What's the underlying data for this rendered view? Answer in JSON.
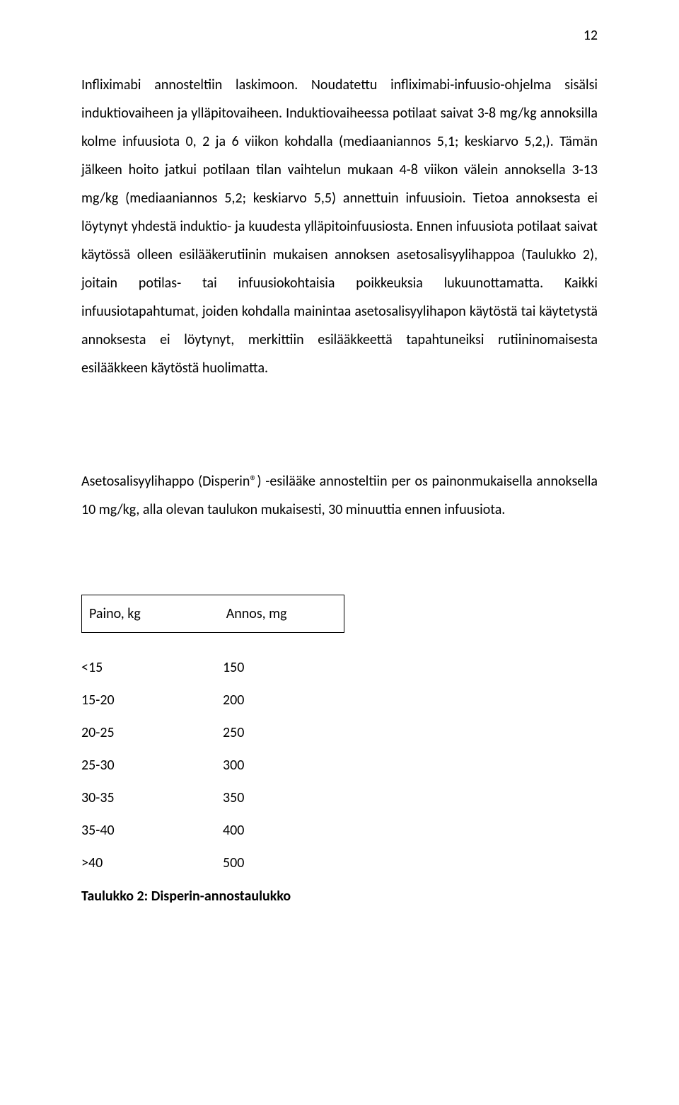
{
  "page_number": "12",
  "paragraph1": "Infliximabi annosteltiin laskimoon. Noudatettu infliximabi-infuusio-ohjelma sisälsi induktiovaiheen ja ylläpitovaiheen. Induktiovaiheessa potilaat saivat 3-8 mg/kg annoksilla kolme infuusiota 0, 2 ja 6 viikon kohdalla (mediaaniannos 5,1; keskiarvo 5,2,). Tämän jälkeen hoito jatkui potilaan tilan vaihtelun mukaan 4-8 viikon välein annoksella 3-13 mg/kg (mediaaniannos 5,2; keskiarvo 5,5) annettuin infuusioin. Tietoa annoksesta ei löytynyt yhdestä induktio- ja kuudesta ylläpitoinfuusiosta. Ennen infuusiota potilaat saivat käytössä olleen esilääkerutiinin mukaisen annoksen asetosalisyylihappoa (Taulukko 2), joitain potilas- tai infuusiokohtaisia poikkeuksia lukuunottamatta. Kaikki infuusiotapahtumat, joiden kohdalla mainintaa asetosalisyylihapon käytöstä tai käytetystä annoksesta ei löytynyt, merkittiin esilääkkeettä tapahtuneiksi rutiininomaisesta esilääkkeen käytöstä huolimatta.",
  "paragraph2": "Asetosalisyylihappo (Disperin®) -esilääke annosteltiin per os painonmukaisella annoksella 10 mg/kg, alla olevan taulukon mukaisesti, 30 minuuttia ennen infuusiota.",
  "table": {
    "header_left": "Paino, kg",
    "header_right": "Annos, mg",
    "rows": [
      {
        "left": "<15",
        "right": "150"
      },
      {
        "left": "15-20",
        "right": "200"
      },
      {
        "left": "20-25",
        "right": "250"
      },
      {
        "left": "25-30",
        "right": "300"
      },
      {
        "left": "30-35",
        "right": "350"
      },
      {
        "left": "35-40",
        "right": "400"
      },
      {
        "left": ">40",
        "right": "500"
      }
    ]
  },
  "caption": "Taulukko 2: Disperin-annostaulukko"
}
